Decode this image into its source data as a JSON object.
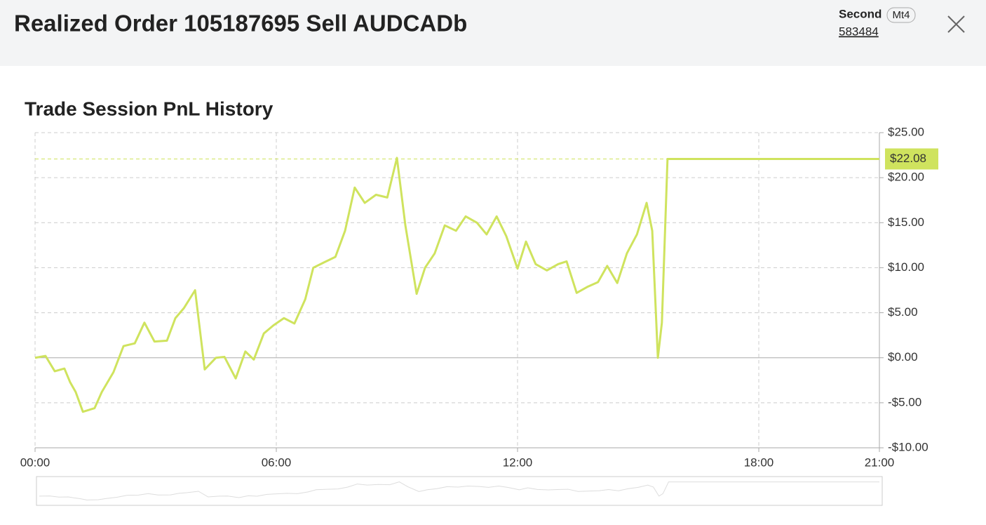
{
  "header": {
    "title": "Realized Order 105187695 Sell AUDCADb",
    "account_type": "Second",
    "platform": "Mt4",
    "account_number": "583484"
  },
  "chart_data": {
    "type": "line",
    "title": "Trade Session PnL History",
    "x": [
      0,
      0.26,
      0.49,
      0.73,
      0.87,
      1.01,
      1.19,
      1.48,
      1.66,
      1.95,
      2.2,
      2.48,
      2.72,
      2.97,
      3.28,
      3.49,
      3.7,
      3.98,
      4.22,
      4.5,
      4.71,
      4.99,
      5.23,
      5.44,
      5.69,
      5.93,
      6.19,
      6.45,
      6.72,
      6.92,
      7.19,
      7.47,
      7.71,
      7.95,
      8.2,
      8.48,
      8.76,
      9.0,
      9.21,
      9.49,
      9.7,
      9.94,
      10.19,
      10.47,
      10.71,
      10.99,
      11.23,
      11.48,
      11.72,
      12.0,
      12.21,
      12.45,
      12.73,
      13.01,
      13.22,
      13.47,
      13.75,
      14.0,
      14.23,
      14.48,
      14.72,
      14.97,
      15.21,
      15.35,
      15.49,
      15.59,
      15.73,
      21
    ],
    "series": [
      {
        "name": "PnL",
        "color": "#cfe35e",
        "values": [
          0,
          0.2,
          -1.5,
          -1.2,
          -2.7,
          -3.8,
          -6.0,
          -5.6,
          -3.8,
          -1.6,
          1.3,
          1.6,
          3.9,
          1.8,
          1.9,
          4.4,
          5.5,
          7.5,
          -1.3,
          0,
          0.1,
          -2.3,
          0.7,
          -0.2,
          2.7,
          3.6,
          4.4,
          3.8,
          6.5,
          10.0,
          10.6,
          11.2,
          14.1,
          18.9,
          17.2,
          18.1,
          17.8,
          22.2,
          14.7,
          7.1,
          10.0,
          11.6,
          14.7,
          14.1,
          15.7,
          15.0,
          13.7,
          15.7,
          13.5,
          9.9,
          12.9,
          10.4,
          9.7,
          10.4,
          10.7,
          7.2,
          7.9,
          8.4,
          10.2,
          8.3,
          11.6,
          13.7,
          17.2,
          14.1,
          0,
          3.9,
          22.08,
          22.08
        ]
      }
    ],
    "last_value": {
      "value": 22.08,
      "label": "$22.08"
    },
    "xlim": [
      0,
      21
    ],
    "xticks": [
      {
        "value": 0,
        "label": "00:00"
      },
      {
        "value": 6,
        "label": "06:00"
      },
      {
        "value": 12,
        "label": "12:00"
      },
      {
        "value": 18,
        "label": "18:00"
      },
      {
        "value": 21,
        "label": "21:00"
      }
    ],
    "ylim": [
      -10,
      25
    ],
    "yticks": [
      {
        "value": -10,
        "label": "-$10.00"
      },
      {
        "value": -5,
        "label": "-$5.00"
      },
      {
        "value": 0,
        "label": "$0.00"
      },
      {
        "value": 5,
        "label": "$5.00"
      },
      {
        "value": 10,
        "label": "$10.00"
      },
      {
        "value": 15,
        "label": "$15.00"
      },
      {
        "value": 20,
        "label": "$20.00"
      },
      {
        "value": 25,
        "label": "$25.00"
      }
    ],
    "grid": true
  }
}
